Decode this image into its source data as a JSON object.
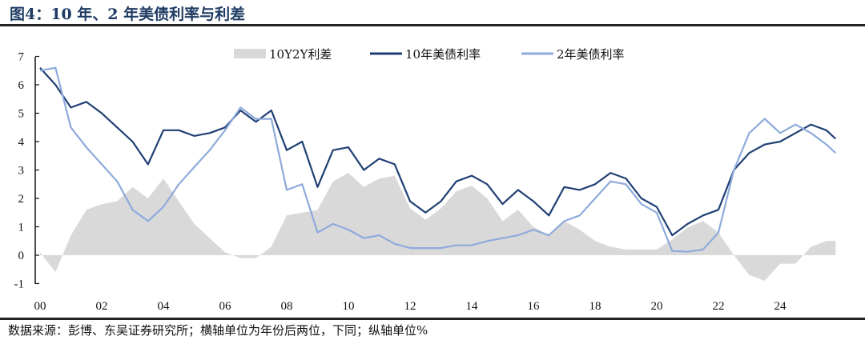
{
  "title": "图4：10 年、2 年美债利率与利差",
  "source": "数据来源：彭博、东吴证券研究所；横轴单位为年份后两位，下同；纵轴单位%",
  "chart_data": {
    "type": "line",
    "xlabel": "",
    "ylabel": "",
    "ylim": [
      -1,
      7
    ],
    "xlim": [
      2000,
      2025.8
    ],
    "yticks": [
      "-1",
      "0",
      "1",
      "2",
      "3",
      "4",
      "5",
      "6",
      "7"
    ],
    "xticks": [
      "00",
      "02",
      "04",
      "06",
      "08",
      "10",
      "12",
      "14",
      "16",
      "18",
      "20",
      "22",
      "24"
    ],
    "legend_position": "top-center",
    "x": [
      2000,
      2000.5,
      2001,
      2001.5,
      2002,
      2002.5,
      2003,
      2003.5,
      2004,
      2004.5,
      2005,
      2005.5,
      2006,
      2006.5,
      2007,
      2007.5,
      2008,
      2008.5,
      2009,
      2009.5,
      2010,
      2010.5,
      2011,
      2011.5,
      2012,
      2012.5,
      2013,
      2013.5,
      2014,
      2014.5,
      2015,
      2015.5,
      2016,
      2016.5,
      2017,
      2017.5,
      2018,
      2018.5,
      2019,
      2019.5,
      2020,
      2020.5,
      2021,
      2021.5,
      2022,
      2022.5,
      2023,
      2023.5,
      2024,
      2024.5,
      2025,
      2025.5,
      2025.8
    ],
    "series": [
      {
        "name": "10Y2Y利差",
        "type": "area",
        "color": "#d9d9d9",
        "values": [
          0.1,
          -0.6,
          0.7,
          1.6,
          1.8,
          1.9,
          2.4,
          2.0,
          2.7,
          1.9,
          1.1,
          0.6,
          0.1,
          -0.1,
          -0.1,
          0.3,
          1.4,
          1.5,
          1.6,
          2.6,
          2.9,
          2.4,
          2.7,
          2.8,
          1.65,
          1.25,
          1.65,
          2.25,
          2.45,
          2.0,
          1.2,
          1.6,
          1.0,
          0.7,
          1.2,
          0.9,
          0.5,
          0.3,
          0.2,
          0.2,
          0.2,
          0.55,
          0.98,
          1.2,
          0.8,
          0.0,
          -0.7,
          -0.9,
          -0.3,
          -0.3,
          0.3,
          0.5,
          0.5
        ]
      },
      {
        "name": "10年美债利率",
        "type": "line",
        "color": "#1f3f73",
        "values": [
          6.6,
          6.0,
          5.2,
          5.4,
          5.0,
          4.5,
          4.0,
          3.2,
          4.4,
          4.4,
          4.2,
          4.3,
          4.5,
          5.1,
          4.7,
          5.1,
          3.7,
          4.0,
          2.4,
          3.7,
          3.8,
          3.0,
          3.4,
          3.2,
          1.9,
          1.5,
          1.9,
          2.6,
          2.8,
          2.5,
          1.8,
          2.3,
          1.9,
          1.4,
          2.4,
          2.3,
          2.5,
          2.9,
          2.7,
          2.0,
          1.7,
          0.7,
          1.1,
          1.4,
          1.6,
          3.0,
          3.6,
          3.9,
          4.0,
          4.3,
          4.6,
          4.4,
          4.1
        ]
      },
      {
        "name": "2年美债利率",
        "type": "line",
        "color": "#8eaadb",
        "values": [
          6.5,
          6.6,
          4.5,
          3.8,
          3.2,
          2.6,
          1.6,
          1.2,
          1.7,
          2.5,
          3.1,
          3.7,
          4.4,
          5.2,
          4.8,
          4.8,
          2.3,
          2.5,
          0.8,
          1.1,
          0.9,
          0.6,
          0.7,
          0.4,
          0.25,
          0.25,
          0.25,
          0.35,
          0.35,
          0.5,
          0.6,
          0.7,
          0.9,
          0.7,
          1.2,
          1.4,
          2.0,
          2.6,
          2.5,
          1.8,
          1.5,
          0.15,
          0.12,
          0.2,
          0.8,
          3.0,
          4.3,
          4.8,
          4.3,
          4.6,
          4.3,
          3.9,
          3.6
        ]
      }
    ]
  }
}
